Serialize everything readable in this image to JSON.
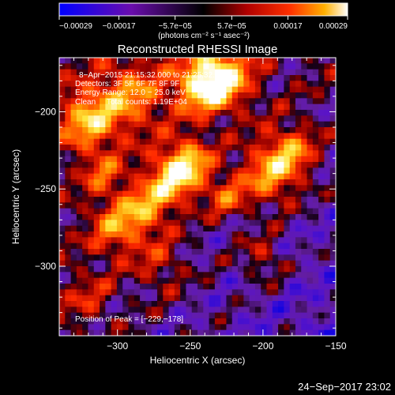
{
  "chart_data": {
    "type": "heatmap",
    "title": "Reconstructed RHESSI Image",
    "xlabel": "Heliocentric X (arcsec)",
    "ylabel": "Heliocentric Y (arcsec)",
    "xlim": [
      -340,
      -150
    ],
    "ylim": [
      -345,
      -165
    ],
    "xticks": [
      -300,
      -250,
      -200,
      -150
    ],
    "xtick_labels": [
      "−300",
      "−250",
      "−200",
      "−150"
    ],
    "yticks": [
      -300,
      -250,
      -200
    ],
    "ytick_labels": [
      "−300",
      "−250",
      "−200"
    ],
    "colorbar": {
      "min": -0.00029,
      "max": 0.00029,
      "tick_values": [
        -0.00029,
        -0.00017,
        -5.7e-05,
        5.7e-05,
        0.00017,
        0.00029
      ],
      "tick_labels": [
        "−0.00029",
        "−0.00017",
        "−5.7e−05",
        "5.7e−05",
        "0.00017",
        "0.00029"
      ],
      "units": "(photons cm⁻² s⁻¹ asec⁻²)"
    },
    "annotations": [
      "8−Apr−2015 21:15:32.000 to 21:25:32.000",
      "Detectors: 3F 5F 6F 7F 8F 9F",
      "Energy Range: 12.0 − 25.0 keV",
      "Clean     Total counts: 1.19E+04"
    ],
    "peak_text": "Position of Peak = [−229,−178]",
    "peak": [
      -229,
      -178
    ],
    "timestamp": "24−Sep−2017 23:02"
  }
}
